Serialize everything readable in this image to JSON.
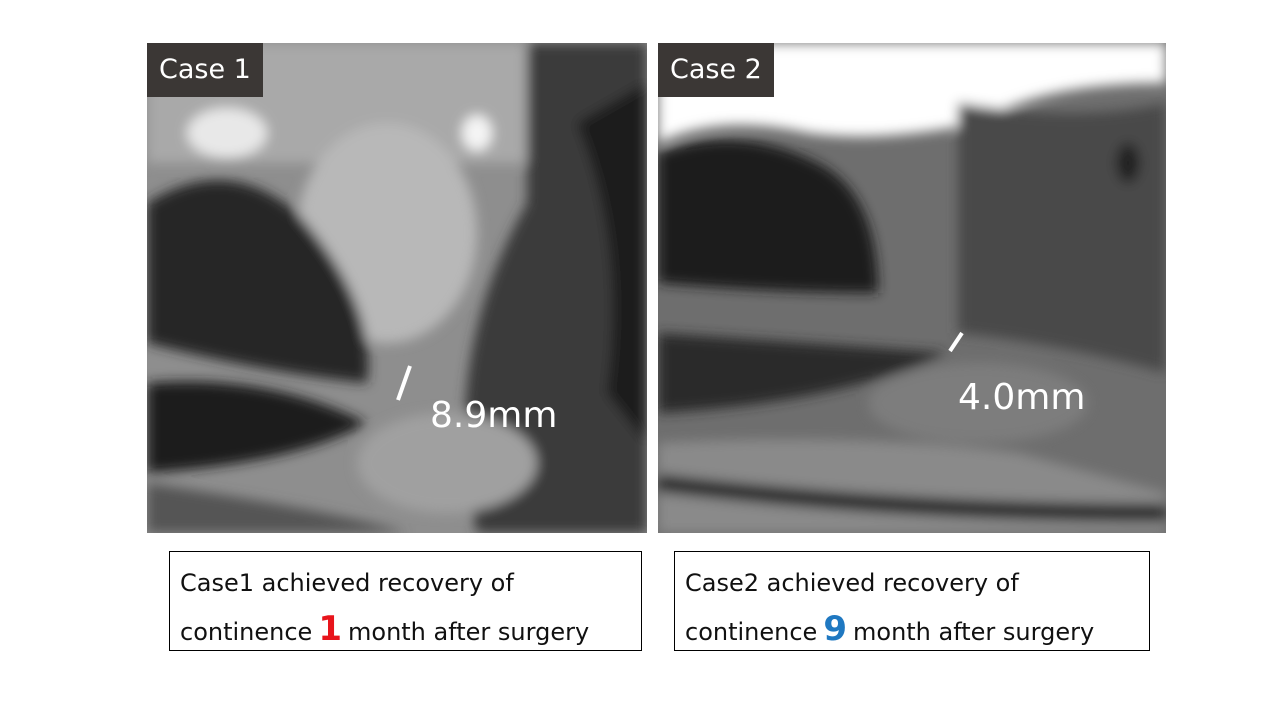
{
  "panels": [
    {
      "label": "Case 1",
      "measurement": "8.9mm",
      "caption": {
        "line1": "Case1 achieved recovery of",
        "line2_before": "continence",
        "number": "1",
        "line2_after": "month after surgery"
      }
    },
    {
      "label": "Case 2",
      "measurement": "4.0mm",
      "caption": {
        "line1": "Case2 achieved recovery of",
        "line2_before": "continence",
        "number": "9",
        "line2_after": "month after surgery"
      }
    }
  ]
}
